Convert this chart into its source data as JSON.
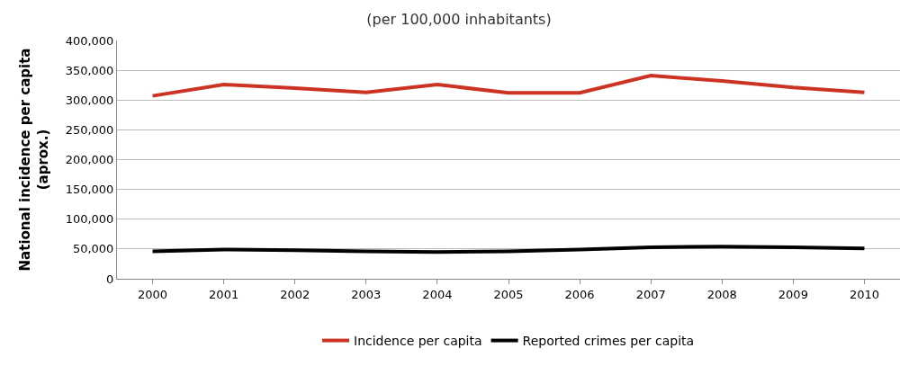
{
  "chart_data": {
    "type": "line",
    "title": "(per 100,000 inhabitants)",
    "ylabel": "National incidence per capita (aprox.)",
    "categories": [
      "2000",
      "2001",
      "2002",
      "2003",
      "2004",
      "2005",
      "2006",
      "2007",
      "2008",
      "2009",
      "2010"
    ],
    "series": [
      {
        "name": "Incidence per capita",
        "color": "#cc3322",
        "values": [
          307000,
          326000,
          320000,
          313000,
          326000,
          312000,
          312000,
          341000,
          332000,
          321000,
          313000
        ]
      },
      {
        "name": "Reported crimes per capita",
        "color": "#000000",
        "values": [
          46000,
          49000,
          48000,
          46000,
          45000,
          46000,
          49000,
          53000,
          54000,
          53000,
          51000
        ]
      }
    ],
    "ylim": [
      0,
      400000
    ],
    "yticks": [
      {
        "value": 0,
        "label": "0"
      },
      {
        "value": 50000,
        "label": "50,000"
      },
      {
        "value": 100000,
        "label": "100,000"
      },
      {
        "value": 150000,
        "label": "150,000"
      },
      {
        "value": 200000,
        "label": "200,000"
      },
      {
        "value": 250000,
        "label": "250,000"
      },
      {
        "value": 300000,
        "label": "300,000"
      },
      {
        "value": 350000,
        "label": "350,000"
      },
      {
        "value": 400000,
        "label": "400,000"
      }
    ],
    "grid": "y",
    "legend": "bottom",
    "marker": "none",
    "line_style": "solid"
  }
}
